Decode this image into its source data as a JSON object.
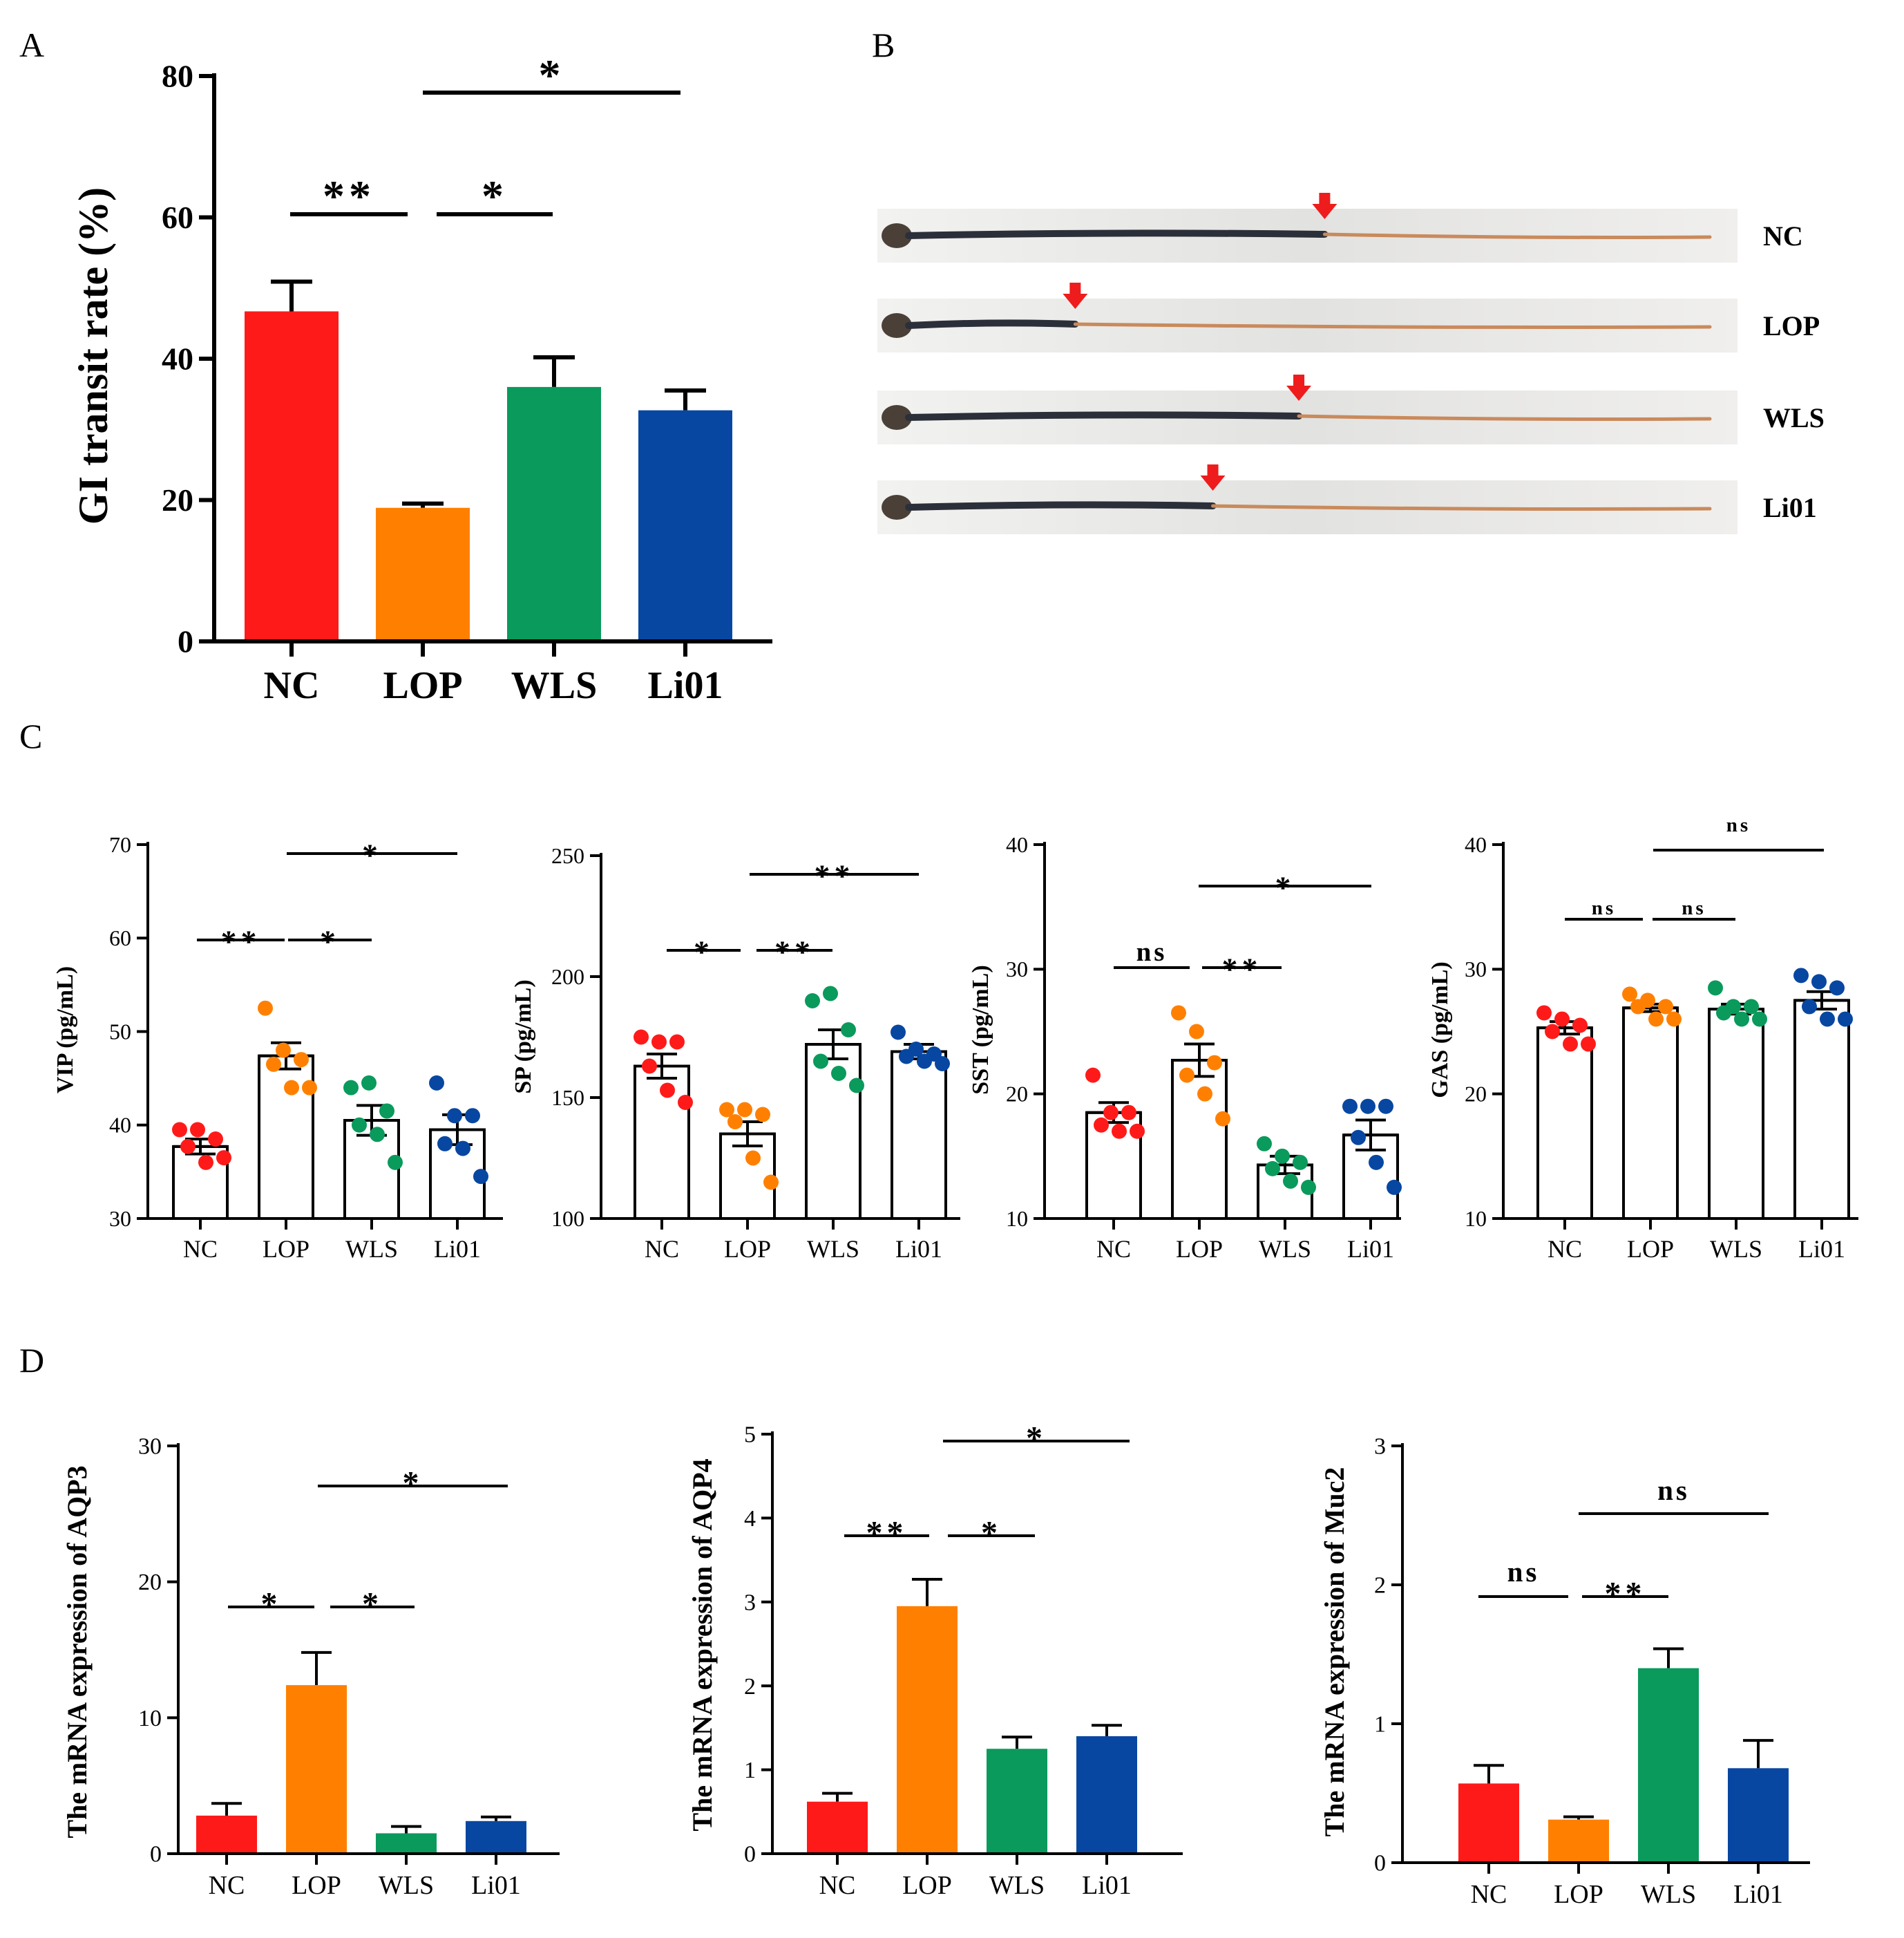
{
  "panel_letters": [
    "A",
    "B",
    "C",
    "D"
  ],
  "group_colors": {
    "NC": "#ff1a1a",
    "LOP": "#ff8000",
    "WLS": "#0a9a5c",
    "Li01": "#0747a1"
  },
  "chart_data": [
    {
      "id": "A",
      "type": "bar",
      "panel": "A",
      "categories": [
        "NC",
        "LOP",
        "WLS",
        "Li01"
      ],
      "values": [
        46.7,
        18.9,
        36.0,
        32.7
      ],
      "errors": [
        4.2,
        0.6,
        4.2,
        2.8
      ],
      "ylabel": "GI transit rate (%)",
      "xlabel": "",
      "ylim": [
        0,
        80
      ],
      "yticks": [
        "0",
        "20",
        "40",
        "60",
        "80"
      ],
      "significance": [
        {
          "from": "NC",
          "to": "LOP",
          "label": "**"
        },
        {
          "from": "LOP",
          "to": "WLS",
          "label": "*"
        },
        {
          "from": "LOP",
          "to": "Li01",
          "label": "*"
        }
      ]
    },
    {
      "id": "C1",
      "type": "bar-scatter",
      "panel": "C",
      "categories": [
        "NC",
        "LOP",
        "WLS",
        "Li01"
      ],
      "values": [
        37.7,
        47.4,
        40.5,
        39.5
      ],
      "errors": [
        0.8,
        1.4,
        1.6,
        1.6
      ],
      "points": [
        [
          39.5,
          39.5,
          38.5,
          37.7,
          36.0,
          36.5
        ],
        [
          52.5,
          48.0,
          47.0,
          46.5,
          44.0,
          44.0
        ],
        [
          44.0,
          44.5,
          41.5,
          40.0,
          39.0,
          36.0
        ],
        [
          44.5,
          41.0,
          41.0,
          38.0,
          37.5,
          34.5
        ]
      ],
      "ylabel": "VIP (pg/mL)",
      "ylim": [
        30,
        70
      ],
      "yticks": [
        "30",
        "40",
        "50",
        "60",
        "70"
      ],
      "significance": [
        {
          "from": "NC",
          "to": "LOP",
          "label": "**"
        },
        {
          "from": "LOP",
          "to": "WLS",
          "label": "*"
        },
        {
          "from": "LOP",
          "to": "Li01",
          "label": "*"
        }
      ]
    },
    {
      "id": "C2",
      "type": "bar-scatter",
      "panel": "C",
      "categories": [
        "NC",
        "LOP",
        "WLS",
        "Li01"
      ],
      "values": [
        163,
        135,
        172,
        169
      ],
      "errors": [
        5,
        5,
        6,
        3
      ],
      "points": [
        [
          175,
          173,
          173,
          163,
          153,
          148
        ],
        [
          145,
          145,
          143,
          140,
          125,
          115
        ],
        [
          190,
          193,
          178,
          165,
          160,
          155
        ],
        [
          177,
          170,
          168,
          167,
          165,
          164
        ]
      ],
      "ylabel": "SP (pg/mL)",
      "ylim": [
        100,
        250
      ],
      "yticks": [
        "100",
        "150",
        "200",
        "250"
      ],
      "significance": [
        {
          "from": "NC",
          "to": "LOP",
          "label": "*"
        },
        {
          "from": "LOP",
          "to": "WLS",
          "label": "**"
        },
        {
          "from": "LOP",
          "to": "Li01",
          "label": "**"
        }
      ]
    },
    {
      "id": "C3",
      "type": "bar-scatter",
      "panel": "C",
      "categories": [
        "NC",
        "LOP",
        "WLS",
        "Li01"
      ],
      "values": [
        18.5,
        22.7,
        14.3,
        16.7
      ],
      "errors": [
        0.8,
        1.3,
        0.7,
        1.2
      ],
      "points": [
        [
          21.5,
          18.5,
          18.5,
          17.5,
          17.0,
          17.0
        ],
        [
          26.5,
          25.0,
          22.5,
          21.5,
          20.0,
          18.0
        ],
        [
          16.0,
          15.0,
          14.5,
          14.0,
          13.0,
          12.5
        ],
        [
          19.0,
          19.0,
          19.0,
          16.5,
          14.5,
          12.5
        ]
      ],
      "ylabel": "SST (pg/mL)",
      "ylim": [
        10,
        40
      ],
      "yticks": [
        "10",
        "20",
        "30",
        "40"
      ],
      "significance": [
        {
          "from": "NC",
          "to": "LOP",
          "label": "ns"
        },
        {
          "from": "LOP",
          "to": "WLS",
          "label": "**"
        },
        {
          "from": "LOP",
          "to": "Li01",
          "label": "*"
        }
      ]
    },
    {
      "id": "C4",
      "type": "bar-scatter",
      "panel": "C",
      "categories": [
        "NC",
        "LOP",
        "WLS",
        "Li01"
      ],
      "values": [
        25.3,
        26.9,
        26.8,
        27.5
      ],
      "errors": [
        0.5,
        0.3,
        0.4,
        0.7
      ],
      "points": [
        [
          26.5,
          26.0,
          25.5,
          25.0,
          24.0,
          24.0
        ],
        [
          28.0,
          27.5,
          27.0,
          27.0,
          26.0,
          26.0
        ],
        [
          28.5,
          27.0,
          27.0,
          26.5,
          26.0,
          26.0
        ],
        [
          29.5,
          29.0,
          28.5,
          27.0,
          26.0,
          26.0
        ]
      ],
      "ylabel": "GAS (pg/mL)",
      "ylim": [
        10,
        40
      ],
      "yticks": [
        "10",
        "20",
        "30",
        "40"
      ],
      "significance": [
        {
          "from": "NC",
          "to": "LOP",
          "label": "ns"
        },
        {
          "from": "LOP",
          "to": "WLS",
          "label": "ns"
        },
        {
          "from": "LOP",
          "to": "Li01",
          "label": "ns"
        }
      ]
    },
    {
      "id": "D1",
      "type": "bar",
      "panel": "D",
      "categories": [
        "NC",
        "LOP",
        "WLS",
        "Li01"
      ],
      "values": [
        2.8,
        12.4,
        1.5,
        2.4
      ],
      "errors": [
        0.9,
        2.4,
        0.5,
        0.3
      ],
      "ylabel": "The mRNA expression of AQP3",
      "ylim": [
        0,
        30
      ],
      "yticks": [
        "0",
        "10",
        "20",
        "30"
      ],
      "significance": [
        {
          "from": "NC",
          "to": "LOP",
          "label": "*"
        },
        {
          "from": "LOP",
          "to": "WLS",
          "label": "*"
        },
        {
          "from": "LOP",
          "to": "Li01",
          "label": "*"
        }
      ]
    },
    {
      "id": "D2",
      "type": "bar",
      "panel": "D",
      "categories": [
        "NC",
        "LOP",
        "WLS",
        "Li01"
      ],
      "values": [
        0.62,
        2.95,
        1.25,
        1.4
      ],
      "errors": [
        0.1,
        0.32,
        0.14,
        0.13
      ],
      "ylabel": "The mRNA expression of AQP4",
      "ylim": [
        0,
        5
      ],
      "yticks": [
        "0",
        "1",
        "2",
        "3",
        "4",
        "5"
      ],
      "significance": [
        {
          "from": "NC",
          "to": "LOP",
          "label": "**"
        },
        {
          "from": "LOP",
          "to": "WLS",
          "label": "*"
        },
        {
          "from": "LOP",
          "to": "Li01",
          "label": "*"
        }
      ]
    },
    {
      "id": "D3",
      "type": "bar",
      "panel": "D",
      "categories": [
        "NC",
        "LOP",
        "WLS",
        "Li01"
      ],
      "values": [
        0.57,
        0.31,
        1.4,
        0.68
      ],
      "errors": [
        0.13,
        0.02,
        0.14,
        0.2
      ],
      "ylabel": "The mRNA expression of Muc2",
      "ylim": [
        0,
        3
      ],
      "yticks": [
        "0",
        "1",
        "2",
        "3"
      ],
      "significance": [
        {
          "from": "NC",
          "to": "LOP",
          "label": "ns"
        },
        {
          "from": "LOP",
          "to": "WLS",
          "label": "**"
        },
        {
          "from": "LOP",
          "to": "Li01",
          "label": "ns"
        }
      ]
    }
  ],
  "panel_b": {
    "rows": [
      {
        "label": "NC",
        "arrow_fraction": 0.52
      },
      {
        "label": "LOP",
        "arrow_fraction": 0.23
      },
      {
        "label": "WLS",
        "arrow_fraction": 0.49
      },
      {
        "label": "Li01",
        "arrow_fraction": 0.39
      }
    ],
    "arrow_color": "#ee1c1c"
  }
}
